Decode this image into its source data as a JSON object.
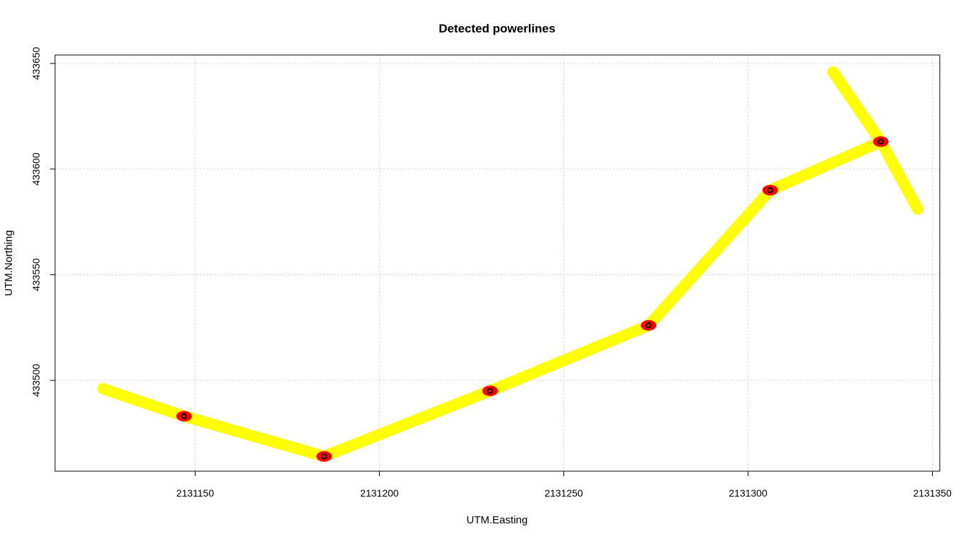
{
  "chart_data": {
    "type": "line",
    "title": "Detected powerlines",
    "xlabel": "UTM.Easting",
    "ylabel": "UTM.Northing",
    "xlim": [
      2131112,
      2131352
    ],
    "ylim": [
      433457,
      433654
    ],
    "x_ticks": [
      2131150,
      2131200,
      2131250,
      2131300,
      2131350
    ],
    "y_ticks": [
      433500,
      433550,
      433600,
      433650
    ],
    "grid": true,
    "line_color": "#ffff00",
    "pole_fill_color": "#ff0000",
    "pole_marker_color": "#000000",
    "series": [
      {
        "values": [
          {
            "x": 2131125,
            "y": 433496
          },
          {
            "x": 2131147,
            "y": 433483
          },
          {
            "x": 2131185,
            "y": 433464
          },
          {
            "x": 2131230,
            "y": 433495
          },
          {
            "x": 2131273,
            "y": 433526
          },
          {
            "x": 2131306,
            "y": 433590
          },
          {
            "x": 2131336,
            "y": 433613
          }
        ]
      },
      {
        "values": [
          {
            "x": 2131323,
            "y": 433646
          },
          {
            "x": 2131336,
            "y": 433613
          },
          {
            "x": 2131346,
            "y": 433581
          }
        ]
      }
    ],
    "poles": [
      {
        "x": 2131147,
        "y": 433483
      },
      {
        "x": 2131185,
        "y": 433464
      },
      {
        "x": 2131230,
        "y": 433495
      },
      {
        "x": 2131273,
        "y": 433526
      },
      {
        "x": 2131306,
        "y": 433590
      },
      {
        "x": 2131336,
        "y": 433613
      }
    ]
  }
}
